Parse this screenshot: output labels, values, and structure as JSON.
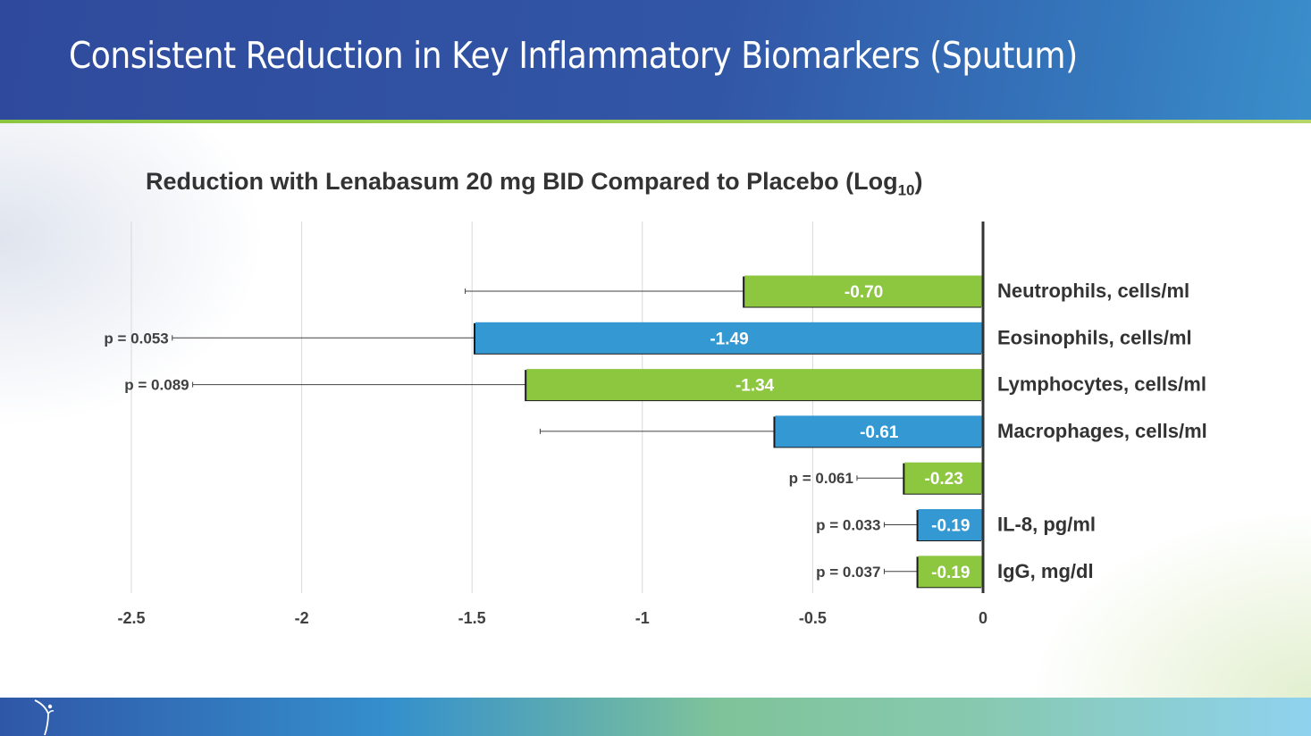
{
  "slide": {
    "title": "Consistent Reduction in Key Inflammatory Biomarkers (Sputum)"
  },
  "chart_data": {
    "type": "bar",
    "orientation": "horizontal",
    "title": "Reduction with Lenabasum 20 mg BID Compared to Placebo (Log",
    "title_subscript": "10",
    "title_suffix": ")",
    "xlim": [
      -2.5,
      0
    ],
    "xticks": [
      "-2.5",
      "-2",
      "-1.5",
      "-1",
      "-0.5",
      "0"
    ],
    "xtick_values": [
      -2.5,
      -2,
      -1.5,
      -1,
      -0.5,
      0
    ],
    "grid": "vertical",
    "colors": {
      "green": "#8dc63f",
      "blue": "#3498d3"
    },
    "categories": [
      "Neutrophils, cells/ml",
      "Eosinophils, cells/ml",
      "Lymphocytes, cells/ml",
      "Macrophages, cells/ml",
      "",
      "IL-8, pg/ml",
      "IgG, mg/dl"
    ],
    "values": [
      -0.7,
      -1.49,
      -1.34,
      -0.61,
      -0.23,
      -0.19,
      -0.19
    ],
    "value_labels": [
      "-0.70",
      "-1.49",
      "-1.34",
      "-0.61",
      "-0.23",
      "-0.19",
      "-0.19"
    ],
    "bar_colors": [
      "green",
      "blue",
      "green",
      "blue",
      "green",
      "blue",
      "green"
    ],
    "error_low": [
      -1.52,
      -2.38,
      -2.32,
      -1.3,
      -0.37,
      -0.29,
      -0.29
    ],
    "p_values": [
      "",
      "p = 0.053",
      "p = 0.089",
      "",
      "p = 0.061",
      "p = 0.033",
      "p = 0.037"
    ]
  }
}
